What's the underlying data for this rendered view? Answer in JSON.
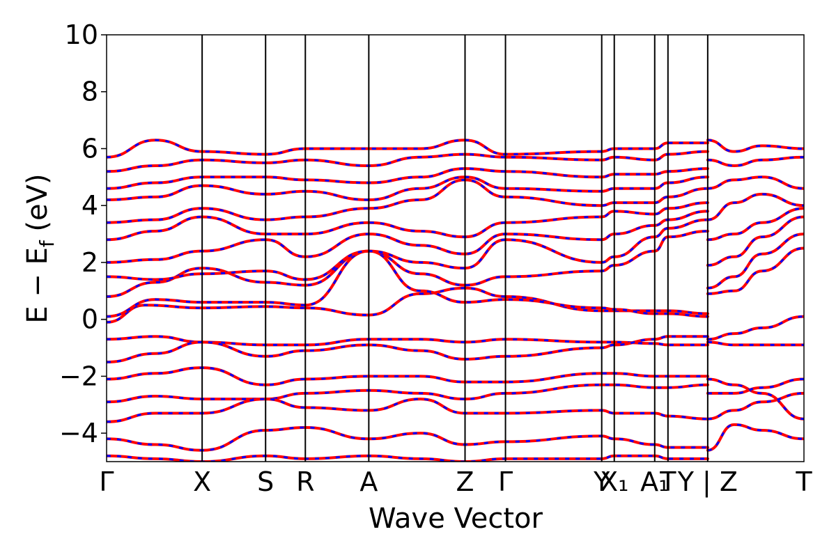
{
  "chart_data": {
    "type": "line",
    "title": "",
    "xlabel": "Wave Vector",
    "ylabel_main": "E − E",
    "ylabel_subscript": "f",
    "ylabel_unit": " (eV)",
    "ylim": [
      -5,
      10
    ],
    "yticks": [
      -4,
      -2,
      0,
      2,
      4,
      6,
      8,
      10
    ],
    "ytick_labels": [
      "−4",
      "−2",
      "0",
      "2",
      "4",
      "6",
      "8",
      "10"
    ],
    "xlim": [
      0,
      10
    ],
    "kpoints": [
      {
        "label": "Γ",
        "x": 0.0
      },
      {
        "label": "X",
        "x": 1.37
      },
      {
        "label": "S",
        "x": 2.28
      },
      {
        "label": "R",
        "x": 2.85
      },
      {
        "label": "A",
        "x": 3.76
      },
      {
        "label": "Z",
        "x": 5.14
      },
      {
        "label": "Γ",
        "x": 5.72
      },
      {
        "label": "Y",
        "x": 7.1
      },
      {
        "label": "X₁",
        "x": 7.28
      },
      {
        "label": "A₁",
        "x": 7.86
      },
      {
        "label": "T",
        "x": 8.05
      },
      {
        "label": "Y | Z",
        "x": 8.62
      },
      {
        "label": "T",
        "x": 10.0
      }
    ],
    "colors": {
      "primary": "#ff0000",
      "overlay": "#0000ff"
    },
    "series": [
      {
        "x": [
          0.0,
          0.55,
          1.37,
          2.28,
          2.85,
          3.76,
          4.5,
          5.14,
          5.72,
          7.1,
          7.28,
          7.86,
          8.05,
          8.62
        ],
        "y": [
          -0.1,
          0.5,
          0.4,
          0.45,
          0.4,
          0.15,
          0.9,
          1.1,
          0.8,
          0.3,
          0.3,
          0.3,
          0.3,
          0.2
        ]
      },
      {
        "x": [
          0.0,
          0.7,
          1.37,
          2.28,
          2.85,
          3.76,
          4.5,
          5.14,
          5.72,
          7.1,
          7.28,
          7.86,
          8.05,
          8.62
        ],
        "y": [
          0.1,
          0.7,
          0.6,
          0.6,
          0.5,
          2.4,
          1.0,
          0.6,
          0.7,
          0.4,
          0.35,
          0.2,
          0.2,
          0.1
        ]
      },
      {
        "x": [
          0.0,
          0.7,
          1.37,
          2.28,
          2.85,
          3.76,
          4.5,
          5.14,
          5.72,
          7.1,
          7.28,
          7.86,
          8.05,
          8.62
        ],
        "y": [
          0.8,
          1.3,
          1.8,
          1.3,
          1.2,
          2.4,
          1.6,
          1.2,
          1.5,
          1.7,
          1.9,
          2.4,
          2.9,
          3.1
        ]
      },
      {
        "x": [
          0.0,
          0.7,
          1.37,
          2.28,
          2.85,
          3.76,
          4.5,
          5.14,
          5.72,
          7.1,
          7.28,
          7.86,
          8.05,
          8.62
        ],
        "y": [
          1.5,
          1.4,
          1.6,
          1.7,
          1.4,
          2.4,
          2.0,
          1.8,
          2.8,
          2.0,
          2.2,
          2.9,
          3.2,
          3.5
        ]
      },
      {
        "x": [
          0.0,
          0.7,
          1.37,
          2.28,
          2.85,
          3.76,
          4.5,
          5.14,
          5.72,
          7.1,
          7.28,
          7.86,
          8.05,
          8.62
        ],
        "y": [
          2.0,
          2.1,
          2.4,
          2.8,
          2.2,
          3.0,
          2.6,
          2.3,
          3.0,
          2.8,
          3.0,
          3.3,
          3.5,
          3.8
        ]
      },
      {
        "x": [
          0.0,
          0.7,
          1.37,
          2.28,
          2.85,
          3.76,
          4.5,
          5.14,
          5.72,
          7.1,
          7.28,
          7.86,
          8.05,
          8.62
        ],
        "y": [
          2.8,
          3.1,
          3.6,
          3.0,
          3.0,
          3.4,
          3.1,
          2.9,
          3.4,
          3.6,
          3.8,
          3.7,
          3.9,
          4.1
        ]
      },
      {
        "x": [
          0.0,
          0.7,
          1.37,
          2.28,
          2.85,
          3.76,
          4.5,
          5.14,
          5.72,
          7.1,
          7.28,
          7.86,
          8.05,
          8.62
        ],
        "y": [
          3.4,
          3.5,
          3.9,
          3.5,
          3.6,
          3.9,
          4.2,
          4.9,
          4.3,
          4.0,
          4.1,
          4.1,
          4.3,
          4.6
        ]
      },
      {
        "x": [
          0.0,
          0.7,
          1.37,
          2.28,
          2.85,
          3.76,
          4.5,
          5.14,
          5.72,
          7.1,
          7.28,
          7.86,
          8.05,
          8.62
        ],
        "y": [
          4.2,
          4.3,
          4.7,
          4.4,
          4.5,
          4.2,
          4.6,
          5.0,
          4.6,
          4.5,
          4.6,
          4.6,
          4.8,
          5.0
        ]
      },
      {
        "x": [
          0.0,
          0.7,
          1.37,
          2.28,
          2.85,
          3.76,
          4.5,
          5.14,
          5.72,
          7.1,
          7.28,
          7.86,
          8.05,
          8.62
        ],
        "y": [
          4.6,
          4.8,
          5.0,
          5.0,
          4.9,
          4.8,
          5.0,
          5.3,
          5.2,
          5.0,
          5.1,
          5.1,
          5.2,
          5.3
        ]
      },
      {
        "x": [
          0.0,
          0.7,
          1.37,
          2.28,
          2.85,
          3.76,
          4.5,
          5.14,
          5.72,
          7.1,
          7.28,
          7.86,
          8.05,
          8.62
        ],
        "y": [
          5.2,
          5.4,
          5.6,
          5.5,
          5.6,
          5.4,
          5.7,
          5.8,
          5.7,
          5.6,
          5.7,
          5.6,
          5.8,
          5.9
        ]
      },
      {
        "x": [
          0.0,
          0.7,
          1.37,
          2.28,
          2.85,
          3.76,
          4.5,
          5.14,
          5.72,
          7.1,
          7.28,
          7.86,
          8.05,
          8.62
        ],
        "y": [
          5.7,
          6.3,
          5.9,
          5.8,
          6.0,
          6.0,
          6.0,
          6.3,
          5.8,
          5.9,
          6.0,
          6.0,
          6.2,
          6.2
        ]
      },
      {
        "x": [
          0.0,
          0.7,
          1.37,
          2.28,
          2.85,
          3.76,
          4.5,
          5.14,
          5.72,
          7.1,
          7.28,
          7.86,
          8.05,
          8.62
        ],
        "y": [
          -0.7,
          -0.6,
          -0.8,
          -0.9,
          -0.9,
          -0.7,
          -0.7,
          -0.8,
          -0.7,
          -0.8,
          -0.8,
          -0.85,
          -0.9,
          -0.9
        ]
      },
      {
        "x": [
          0.0,
          0.7,
          1.37,
          2.28,
          2.85,
          3.76,
          4.5,
          5.14,
          5.72,
          7.1,
          7.28,
          7.86,
          8.05,
          8.62
        ],
        "y": [
          -1.5,
          -1.2,
          -0.8,
          -1.3,
          -1.1,
          -0.9,
          -1.1,
          -1.4,
          -1.3,
          -1.0,
          -0.9,
          -0.7,
          -0.6,
          -0.6
        ]
      },
      {
        "x": [
          0.0,
          0.7,
          1.37,
          2.28,
          2.85,
          3.76,
          4.5,
          5.14,
          5.72,
          7.1,
          7.28,
          7.86,
          8.05,
          8.62
        ],
        "y": [
          -2.1,
          -1.9,
          -1.7,
          -2.3,
          -2.1,
          -2.0,
          -2.0,
          -2.2,
          -2.2,
          -1.9,
          -1.9,
          -2.0,
          -2.0,
          -2.0
        ]
      },
      {
        "x": [
          0.0,
          0.7,
          1.37,
          2.28,
          2.85,
          3.76,
          4.5,
          5.14,
          5.72,
          7.1,
          7.28,
          7.86,
          8.05,
          8.62
        ],
        "y": [
          -2.9,
          -2.7,
          -2.8,
          -2.8,
          -2.6,
          -2.5,
          -2.6,
          -2.8,
          -2.6,
          -2.3,
          -2.3,
          -2.4,
          -2.4,
          -2.3
        ]
      },
      {
        "x": [
          0.0,
          0.7,
          1.37,
          2.28,
          2.85,
          3.76,
          4.5,
          5.14,
          5.72,
          7.1,
          7.28,
          7.86,
          8.05,
          8.62
        ],
        "y": [
          -3.6,
          -3.3,
          -3.3,
          -2.8,
          -3.1,
          -3.2,
          -2.8,
          -3.3,
          -3.3,
          -3.2,
          -3.3,
          -3.3,
          -3.4,
          -3.5
        ]
      },
      {
        "x": [
          0.0,
          0.7,
          1.37,
          2.28,
          2.85,
          3.76,
          4.5,
          5.14,
          5.72,
          7.1,
          7.28,
          7.86,
          8.05,
          8.62
        ],
        "y": [
          -4.2,
          -4.4,
          -4.6,
          -3.9,
          -3.8,
          -4.2,
          -4.0,
          -4.4,
          -4.3,
          -4.1,
          -4.2,
          -4.4,
          -4.5,
          -4.5
        ]
      },
      {
        "x": [
          0.0,
          0.7,
          1.37,
          2.28,
          2.85,
          3.76,
          4.5,
          5.14,
          5.72,
          7.1,
          7.28,
          7.86,
          8.05,
          8.62
        ],
        "y": [
          -4.8,
          -4.9,
          -5.0,
          -4.8,
          -4.9,
          -4.8,
          -4.9,
          -5.0,
          -4.9,
          -4.9,
          -4.8,
          -4.8,
          -4.9,
          -4.9
        ]
      },
      {
        "x": [
          8.62,
          9.0,
          9.4,
          10.0
        ],
        "y": [
          -0.7,
          -0.5,
          -0.3,
          0.1
        ]
      },
      {
        "x": [
          8.62,
          9.0,
          9.4,
          10.0
        ],
        "y": [
          -0.8,
          -0.9,
          -0.9,
          -0.9
        ]
      },
      {
        "x": [
          8.62,
          9.0,
          9.4,
          10.0
        ],
        "y": [
          0.9,
          1.0,
          1.7,
          2.5
        ]
      },
      {
        "x": [
          8.62,
          9.0,
          9.4,
          10.0
        ],
        "y": [
          1.1,
          1.5,
          2.3,
          3.0
        ]
      },
      {
        "x": [
          8.62,
          9.0,
          9.4,
          10.0
        ],
        "y": [
          1.9,
          2.2,
          2.9,
          3.6
        ]
      },
      {
        "x": [
          8.62,
          9.0,
          9.4,
          10.0
        ],
        "y": [
          2.8,
          3.0,
          3.4,
          3.9
        ]
      },
      {
        "x": [
          8.62,
          9.0,
          9.4,
          10.0
        ],
        "y": [
          3.5,
          4.1,
          4.4,
          4.0
        ]
      },
      {
        "x": [
          8.62,
          9.0,
          9.4,
          10.0
        ],
        "y": [
          4.6,
          4.9,
          5.0,
          4.6
        ]
      },
      {
        "x": [
          8.62,
          9.0,
          9.4,
          10.0
        ],
        "y": [
          5.6,
          5.4,
          5.6,
          5.7
        ]
      },
      {
        "x": [
          8.62,
          9.0,
          9.4,
          10.0
        ],
        "y": [
          6.3,
          5.9,
          6.1,
          6.0
        ]
      },
      {
        "x": [
          8.62,
          9.0,
          9.4,
          10.0
        ],
        "y": [
          -2.1,
          -2.3,
          -2.6,
          -3.5
        ]
      },
      {
        "x": [
          8.62,
          9.0,
          9.4,
          10.0
        ],
        "y": [
          -2.6,
          -2.6,
          -2.4,
          -2.1
        ]
      },
      {
        "x": [
          8.62,
          9.0,
          9.4,
          10.0
        ],
        "y": [
          -4.6,
          -3.7,
          -3.9,
          -4.2
        ]
      },
      {
        "x": [
          8.62,
          9.0,
          9.4,
          10.0
        ],
        "y": [
          -3.5,
          -3.2,
          -2.9,
          -2.6
        ]
      }
    ]
  }
}
